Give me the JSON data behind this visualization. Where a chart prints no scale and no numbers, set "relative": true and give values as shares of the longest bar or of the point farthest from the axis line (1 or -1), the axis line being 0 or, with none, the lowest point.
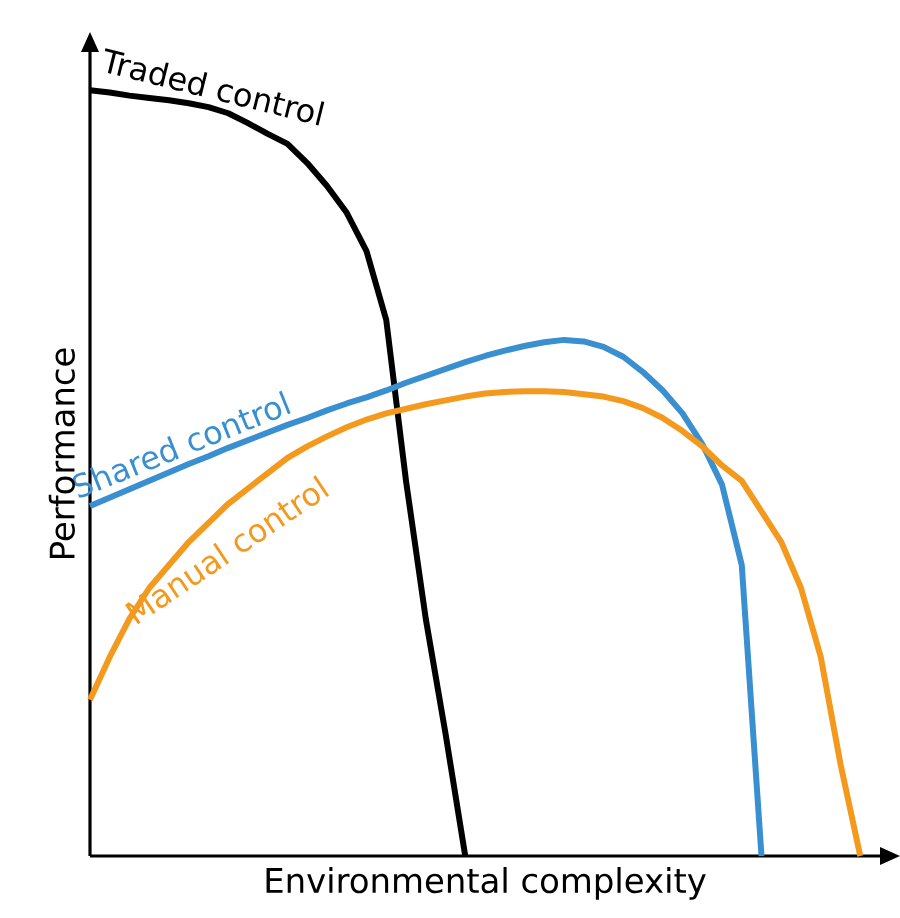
{
  "chart_data": {
    "type": "line",
    "relative": true,
    "xlabel": "Environmental complexity",
    "ylabel": "Performance",
    "marker": "none",
    "line_style": "solid",
    "categories": [
      null,
      null,
      null,
      null,
      null,
      null,
      null,
      null,
      null,
      null,
      null,
      null,
      null,
      null,
      null,
      null,
      null,
      null,
      null,
      null,
      null,
      null,
      null,
      null,
      null,
      null,
      null,
      null,
      null,
      null,
      null,
      null,
      null,
      null,
      null,
      null,
      null,
      null,
      null,
      null
    ],
    "series": [
      {
        "name": "Traded control",
        "color": "#000000",
        "values": [
          1.0,
          0.997,
          0.993,
          0.99,
          0.987,
          0.983,
          0.978,
          0.97,
          0.957,
          0.943,
          0.93,
          0.905,
          0.875,
          0.84,
          0.79,
          0.7,
          0.49,
          0.31,
          0.16,
          0,
          null,
          null,
          null,
          null,
          null,
          null,
          null,
          null,
          null,
          null,
          null,
          null,
          null,
          null,
          null,
          null,
          null,
          null,
          null,
          null
        ]
      },
      {
        "name": "Shared control",
        "color": "#3a8fd0",
        "values": [
          0.457,
          0.468,
          0.479,
          0.49,
          0.501,
          0.512,
          0.522,
          0.533,
          0.543,
          0.553,
          0.563,
          0.572,
          0.582,
          0.591,
          0.599,
          0.608,
          0.618,
          0.627,
          0.636,
          0.645,
          0.653,
          0.66,
          0.666,
          0.671,
          0.674,
          0.672,
          0.665,
          0.652,
          0.632,
          0.608,
          0.578,
          0.538,
          0.485,
          0.38,
          0,
          null,
          null,
          null,
          null,
          null
        ]
      },
      {
        "name": "Manual control",
        "color": "#f39a1e",
        "values": [
          0.204,
          0.26,
          0.31,
          0.35,
          0.38,
          0.41,
          0.435,
          0.46,
          0.48,
          0.5,
          0.52,
          0.535,
          0.548,
          0.56,
          0.57,
          0.578,
          0.584,
          0.59,
          0.595,
          0.6,
          0.604,
          0.606,
          0.607,
          0.607,
          0.606,
          0.603,
          0.6,
          0.594,
          0.585,
          0.572,
          0.555,
          0.535,
          0.51,
          0.49,
          0.45,
          0.41,
          0.35,
          0.26,
          0.12,
          0
        ]
      }
    ]
  }
}
